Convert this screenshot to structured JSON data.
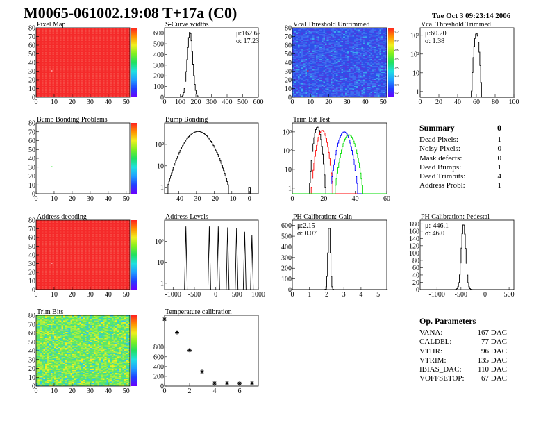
{
  "header": {
    "title": "M0065-061002.19:08 T+17a (C0)",
    "date": "Tue Oct  3 09:23:14 2006"
  },
  "panels": {
    "pixel_map": {
      "title": "Pixel Map"
    },
    "scurve": {
      "title": "S-Curve widths",
      "mu": "μ:162.62",
      "sigma": "σ: 17.23"
    },
    "vcal_untrimmed": {
      "title": "Vcal Threshold Untrimmed"
    },
    "vcal_trimmed": {
      "title": "Vcal Threshold Trimmed",
      "mu": "μ:60.20",
      "sigma": "σ: 1.38"
    },
    "bump_problems": {
      "title": "Bump Bonding Problems"
    },
    "bump_bonding": {
      "title": "Bump Bonding"
    },
    "trim_bit_test": {
      "title": "Trim Bit Test"
    },
    "address_decoding": {
      "title": "Address decoding"
    },
    "address_levels": {
      "title": "Address Levels"
    },
    "gain": {
      "title": "PH Calibration: Gain",
      "mu": "μ:2.15",
      "sigma": "σ: 0.07"
    },
    "pedestal": {
      "title": "PH Calibration: Pedestal",
      "mu": "μ:-446.1",
      "sigma": "σ: 46.0"
    },
    "trim_bits": {
      "title": "Trim Bits"
    },
    "temperature": {
      "title": "Temperature calibration"
    }
  },
  "summary": {
    "heading": "Summary",
    "total": "0",
    "rows": [
      {
        "label": "Dead Pixels:",
        "value": "1"
      },
      {
        "label": "Noisy Pixels:",
        "value": "0"
      },
      {
        "label": "Mask defects:",
        "value": "0"
      },
      {
        "label": "Dead Bumps:",
        "value": "1"
      },
      {
        "label": "Dead Trimbits:",
        "value": "4"
      },
      {
        "label": "Address Probl:",
        "value": "1"
      }
    ]
  },
  "op_params": {
    "heading": "Op. Parameters",
    "rows": [
      {
        "label": "VANA:",
        "value": "167 DAC"
      },
      {
        "label": "CALDEL:",
        "value": "77 DAC"
      },
      {
        "label": "VTHR:",
        "value": "96 DAC"
      },
      {
        "label": "VTRIM:",
        "value": "135 DAC"
      },
      {
        "label": "IBIAS_DAC:",
        "value": "110 DAC"
      },
      {
        "label": "VOFFSETOP:",
        "value": "67 DAC"
      }
    ]
  },
  "colors": {
    "red_map": "#f52a2a",
    "blue_map": "#2f4fe8",
    "hist_line": "#000000"
  },
  "chart_data": [
    {
      "id": "pixel_map",
      "type": "heatmap",
      "xlim": [
        0,
        52
      ],
      "ylim": [
        0,
        80
      ],
      "xticks": [
        "0",
        "10",
        "20",
        "30",
        "40",
        "50"
      ],
      "yticks": [
        "0",
        "10",
        "20",
        "30",
        "40",
        "50",
        "60",
        "70",
        "80"
      ],
      "fill": "red",
      "special_pixels": [
        {
          "x": 8,
          "y": 30,
          "color": "white"
        }
      ]
    },
    {
      "id": "scurve",
      "type": "bar",
      "xlim": [
        0,
        600
      ],
      "ylim": [
        0,
        650
      ],
      "xticks": [
        "0",
        "100",
        "200",
        "300",
        "400",
        "500",
        "600"
      ],
      "yticks": [
        "0",
        "100",
        "200",
        "300",
        "400",
        "500",
        "600"
      ],
      "peak": 610,
      "mean": 162.62,
      "sigma": 17.23
    },
    {
      "id": "vcal_untrimmed",
      "type": "heatmap",
      "xlim": [
        0,
        52
      ],
      "ylim": [
        0,
        80
      ],
      "xticks": [
        "0",
        "10",
        "20",
        "30",
        "40",
        "50"
      ],
      "yticks": [
        "0",
        "10",
        "20",
        "30",
        "40",
        "50",
        "60",
        "70",
        "80"
      ],
      "zticks": [
        "100",
        "120",
        "140",
        "160",
        "180",
        "200",
        "220",
        "240"
      ],
      "fill": "blue",
      "special_pixels": [
        {
          "x": 8,
          "y": 30,
          "color": "red"
        }
      ]
    },
    {
      "id": "vcal_trimmed",
      "type": "bar",
      "log_y": true,
      "xlim": [
        0,
        100
      ],
      "ylim": [
        0.5,
        2500
      ],
      "xticks": [
        "0",
        "20",
        "40",
        "60",
        "80",
        "100"
      ],
      "yticks": [
        "1",
        "10",
        "10²",
        "10³"
      ],
      "peak": 1300,
      "mean": 60.2,
      "sigma": 1.38
    },
    {
      "id": "bump_problems",
      "type": "heatmap",
      "xlim": [
        0,
        52
      ],
      "ylim": [
        0,
        80
      ],
      "xticks": [
        "0",
        "10",
        "20",
        "30",
        "40",
        "50"
      ],
      "yticks": [
        "0",
        "10",
        "20",
        "30",
        "40",
        "50",
        "60",
        "70",
        "80"
      ],
      "fill": "white",
      "special_pixels": [
        {
          "x": 8,
          "y": 30,
          "color": "green"
        }
      ]
    },
    {
      "id": "bump_bonding",
      "type": "bar",
      "log_y": true,
      "xlim": [
        -48,
        5
      ],
      "ylim": [
        0.5,
        1000
      ],
      "xticks": [
        "-40",
        "-30",
        "-20",
        "-10",
        "0"
      ],
      "yticks": [
        "1",
        "10",
        "10²"
      ],
      "peak": 400,
      "mean": -29,
      "sigma": 5,
      "extra_bins": [
        {
          "x": 0,
          "count": 1
        }
      ]
    },
    {
      "id": "trim_bit_test",
      "type": "bar",
      "log_y": true,
      "xlim": [
        0,
        60
      ],
      "ylim": [
        0.5,
        3000
      ],
      "xticks": [
        "0",
        "20",
        "40",
        "60"
      ],
      "yticks": [
        "1",
        "10",
        "10²",
        "10³"
      ],
      "series": [
        {
          "color": "#000000",
          "peak": 1800,
          "mean": 16,
          "sigma": 1.3
        },
        {
          "color": "#ff0000",
          "peak": 1200,
          "mean": 19,
          "sigma": 1.8
        },
        {
          "color": "#0000ff",
          "peak": 1000,
          "mean": 33,
          "sigma": 2.3
        },
        {
          "color": "#00dd00",
          "peak": 700,
          "mean": 36,
          "sigma": 2.4
        }
      ]
    },
    {
      "id": "address_decoding",
      "type": "heatmap",
      "xlim": [
        0,
        52
      ],
      "ylim": [
        0,
        80
      ],
      "xticks": [
        "0",
        "10",
        "20",
        "30",
        "40",
        "50"
      ],
      "yticks": [
        "0",
        "10",
        "20",
        "30",
        "40",
        "50",
        "60",
        "70",
        "80"
      ],
      "fill": "red",
      "special_pixels": [
        {
          "x": 8,
          "y": 30,
          "color": "white"
        }
      ]
    },
    {
      "id": "address_levels",
      "type": "bar",
      "log_y": true,
      "xlim": [
        -1200,
        1000
      ],
      "ylim": [
        0.5,
        1000
      ],
      "xticks": [
        "-1000",
        "-500",
        "0",
        "500",
        "1000"
      ],
      "yticks": [
        "1",
        "10",
        "10²"
      ],
      "peaks": [
        {
          "x": -700,
          "count": 500
        },
        {
          "x": -150,
          "count": 500
        },
        {
          "x": 60,
          "count": 500
        },
        {
          "x": 280,
          "count": 450
        },
        {
          "x": 490,
          "count": 430
        },
        {
          "x": 680,
          "count": 280
        },
        {
          "x": 850,
          "count": 200
        }
      ]
    },
    {
      "id": "gain",
      "type": "bar",
      "xlim": [
        0,
        5.5
      ],
      "ylim": [
        0,
        650
      ],
      "xticks": [
        "0",
        "1",
        "2",
        "3",
        "4",
        "5"
      ],
      "yticks": [
        "0",
        "100",
        "200",
        "300",
        "400",
        "500",
        "600"
      ],
      "peak": 610,
      "mean": 2.15,
      "sigma": 0.07
    },
    {
      "id": "pedestal",
      "type": "bar",
      "xlim": [
        -1350,
        600
      ],
      "ylim": [
        0,
        190
      ],
      "xticks": [
        "-1000",
        "-500",
        "0",
        "500"
      ],
      "yticks": [
        "0",
        "20",
        "40",
        "60",
        "80",
        "100",
        "120",
        "140",
        "160",
        "180"
      ],
      "peak": 180,
      "mean": -446.1,
      "sigma": 46.0
    },
    {
      "id": "trim_bits",
      "type": "heatmap",
      "xlim": [
        0,
        52
      ],
      "ylim": [
        0,
        80
      ],
      "xticks": [
        "0",
        "10",
        "20",
        "30",
        "40",
        "50"
      ],
      "yticks": [
        "0",
        "10",
        "20",
        "30",
        "40",
        "50",
        "60",
        "70",
        "80"
      ],
      "fill": "green-yellow"
    },
    {
      "id": "temperature",
      "type": "scatter",
      "xlim": [
        0,
        7.5
      ],
      "ylim": [
        0,
        1450
      ],
      "xticks": [
        "0",
        "2",
        "4",
        "6"
      ],
      "yticks": [
        "0",
        "200",
        "400",
        "600",
        "800"
      ],
      "x": [
        0,
        1,
        2,
        3,
        4,
        5,
        6,
        7
      ],
      "y": [
        1370,
        1100,
        735,
        295,
        60,
        60,
        55,
        60
      ]
    }
  ]
}
